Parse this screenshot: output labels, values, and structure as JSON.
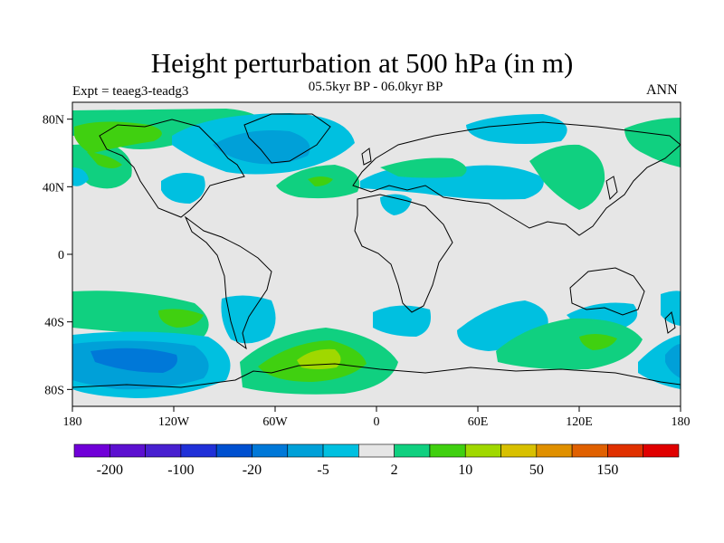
{
  "title": "Height perturbation at 500 hPa (in m)",
  "subtitle": "05.5kyr BP - 06.0kyr BP",
  "left_label": "Expt = teaeg3-teadg3",
  "right_label": "ANN",
  "lat_ticks": [
    "80N",
    "40N",
    "0",
    "40S",
    "80S"
  ],
  "lon_ticks": [
    "180",
    "120W",
    "60W",
    "0",
    "60E",
    "120E",
    "180"
  ],
  "colorbar": {
    "colors": [
      "#7000d8",
      "#5c10d0",
      "#4820d0",
      "#2030d8",
      "#0050d0",
      "#0078d8",
      "#00a0d8",
      "#00c0e0",
      "#e6e6e6",
      "#10d080",
      "#40d010",
      "#a0d800",
      "#d8c000",
      "#e09000",
      "#e06000",
      "#e03000",
      "#e00000"
    ],
    "labels": [
      {
        "text": "-200",
        "after_box": 1
      },
      {
        "text": "-100",
        "after_box": 3
      },
      {
        "text": "-20",
        "after_box": 5
      },
      {
        "text": "-5",
        "after_box": 7
      },
      {
        "text": "2",
        "after_box": 9
      },
      {
        "text": "10",
        "after_box": 11
      },
      {
        "text": "50",
        "after_box": 13
      },
      {
        "text": "150",
        "after_box": 15
      }
    ]
  },
  "map_colors": {
    "background": "#e6e6e6",
    "cyan": "#00c0e0",
    "light_blue": "#00a0d8",
    "blue": "#0078d8",
    "green": "#10d080",
    "bright_green": "#40d010",
    "yellow_green": "#a0d800",
    "coast": "#000000"
  }
}
